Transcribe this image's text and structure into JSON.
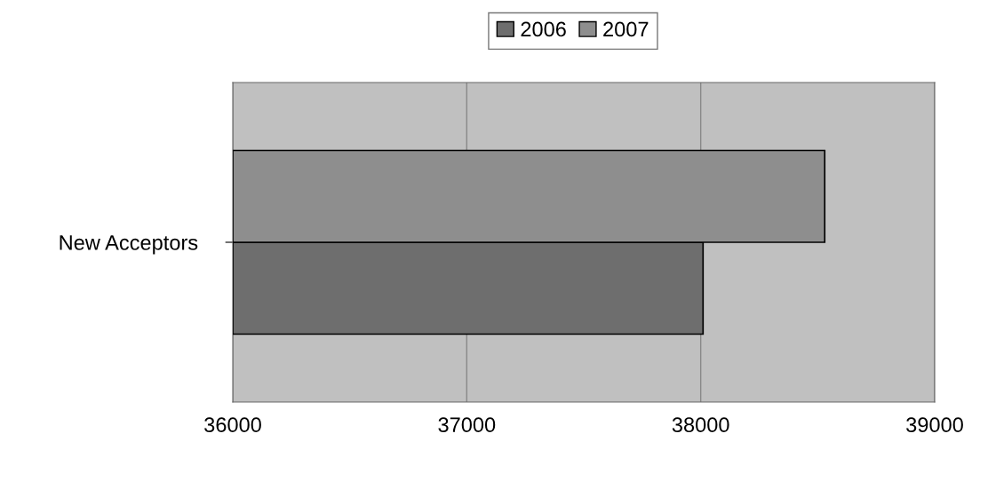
{
  "chart_data": {
    "type": "bar",
    "orientation": "horizontal",
    "categories": [
      "New Acceptors"
    ],
    "series": [
      {
        "name": "2006",
        "color": "#6e6e6e",
        "values": [
          38010
        ]
      },
      {
        "name": "2007",
        "color": "#8e8e8e",
        "values": [
          38530
        ]
      }
    ],
    "xlim": [
      36000,
      39000
    ],
    "xticks": [
      36000,
      37000,
      38000,
      39000
    ],
    "grid": "x",
    "legend": "top"
  }
}
